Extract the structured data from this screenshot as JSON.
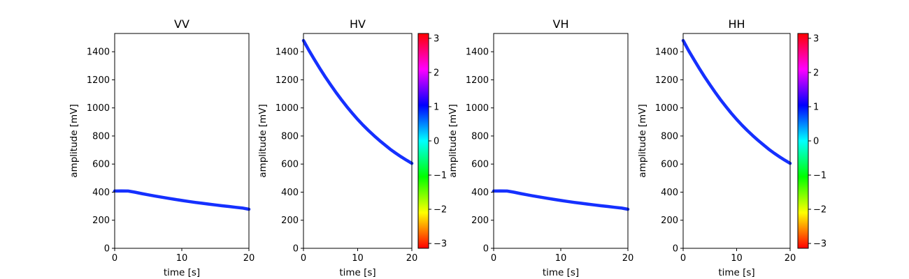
{
  "chart_data": [
    {
      "type": "line",
      "title": "VV",
      "xlabel": "time [s]",
      "ylabel": "amplitude [mV]",
      "xlim": [
        0,
        20
      ],
      "ylim": [
        0,
        1530
      ],
      "xticks": [
        0,
        10,
        20
      ],
      "yticks": [
        0,
        200,
        400,
        600,
        800,
        1000,
        1200,
        1400
      ],
      "grid": false,
      "series": [
        {
          "color": "#1530ff",
          "x": [
            0,
            1,
            2,
            3,
            4,
            5,
            6,
            7,
            8,
            9,
            10,
            11,
            12,
            13,
            14,
            15,
            16,
            17,
            18,
            19,
            20
          ],
          "y": [
            408,
            409,
            408,
            400,
            390,
            381,
            372,
            364,
            356,
            348,
            341,
            334,
            327,
            321,
            315,
            309,
            303,
            298,
            292,
            287,
            278
          ]
        }
      ]
    },
    {
      "type": "line",
      "title": "HV",
      "xlabel": "time [s]",
      "ylabel": "amplitude [mV]",
      "xlim": [
        0,
        20
      ],
      "ylim": [
        0,
        1530
      ],
      "xticks": [
        0,
        10,
        20
      ],
      "yticks": [
        0,
        200,
        400,
        600,
        800,
        1000,
        1200,
        1400
      ],
      "grid": false,
      "series": [
        {
          "color": "#1530ff",
          "x": [
            0,
            1,
            2,
            3,
            4,
            5,
            6,
            7,
            8,
            9,
            10,
            11,
            12,
            13,
            14,
            15,
            16,
            17,
            18,
            19,
            20
          ],
          "y": [
            1480,
            1410,
            1345,
            1282,
            1222,
            1165,
            1110,
            1058,
            1009,
            962,
            918,
            877,
            839,
            803,
            769,
            737,
            706,
            678,
            652,
            628,
            605
          ]
        }
      ]
    },
    {
      "type": "line",
      "title": "VH",
      "xlabel": "time [s]",
      "ylabel": "amplitude [mV]",
      "xlim": [
        0,
        20
      ],
      "ylim": [
        0,
        1530
      ],
      "xticks": [
        0,
        10,
        20
      ],
      "yticks": [
        0,
        200,
        400,
        600,
        800,
        1000,
        1200,
        1400
      ],
      "grid": false,
      "series": [
        {
          "color": "#1530ff",
          "x": [
            0,
            1,
            2,
            3,
            4,
            5,
            6,
            7,
            8,
            9,
            10,
            11,
            12,
            13,
            14,
            15,
            16,
            17,
            18,
            19,
            20
          ],
          "y": [
            408,
            409,
            408,
            400,
            390,
            381,
            372,
            364,
            356,
            348,
            341,
            334,
            327,
            321,
            315,
            309,
            303,
            298,
            292,
            287,
            278
          ]
        }
      ]
    },
    {
      "type": "line",
      "title": "HH",
      "xlabel": "time [s]",
      "ylabel": "amplitude [mV]",
      "xlim": [
        0,
        20
      ],
      "ylim": [
        0,
        1530
      ],
      "xticks": [
        0,
        10,
        20
      ],
      "yticks": [
        0,
        200,
        400,
        600,
        800,
        1000,
        1200,
        1400
      ],
      "grid": false,
      "series": [
        {
          "color": "#1530ff",
          "x": [
            0,
            1,
            2,
            3,
            4,
            5,
            6,
            7,
            8,
            9,
            10,
            11,
            12,
            13,
            14,
            15,
            16,
            17,
            18,
            19,
            20
          ],
          "y": [
            1480,
            1410,
            1345,
            1282,
            1222,
            1165,
            1110,
            1058,
            1009,
            962,
            918,
            877,
            839,
            803,
            769,
            737,
            706,
            678,
            652,
            628,
            605
          ]
        }
      ]
    }
  ],
  "colorbars": [
    {
      "after_panel": "HV",
      "range": [
        -3.1416,
        3.1416
      ],
      "ticks": [
        3,
        2,
        1,
        0,
        -1,
        -2,
        -3
      ],
      "tick_labels": [
        "3",
        "2",
        "1",
        "0",
        "−1",
        "−2",
        "−3"
      ],
      "colormap": "hsv"
    },
    {
      "after_panel": "HH",
      "range": [
        -3.1416,
        3.1416
      ],
      "ticks": [
        3,
        2,
        1,
        0,
        -1,
        -2,
        -3
      ],
      "tick_labels": [
        "3",
        "2",
        "1",
        "0",
        "−1",
        "−2",
        "−3"
      ],
      "colormap": "hsv"
    }
  ]
}
